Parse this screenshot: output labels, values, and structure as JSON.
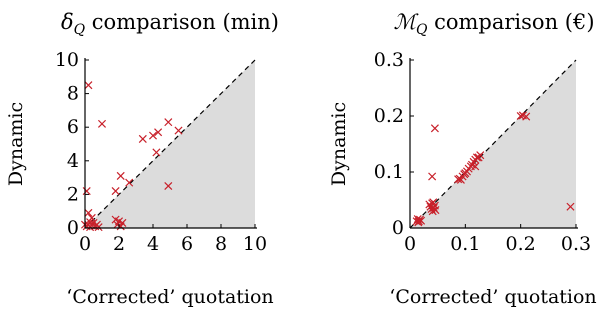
{
  "chart_data": [
    {
      "id": "left",
      "type": "scatter",
      "title_math": "δ",
      "title_sub": "Q",
      "title_text": " comparison (min)",
      "xlabel": "‘Corrected’ quotation",
      "ylabel": "Dynamic",
      "xlim": [
        0,
        10
      ],
      "ylim": [
        0,
        10
      ],
      "xticks": [
        0,
        2,
        4,
        6,
        8,
        10
      ],
      "yticks": [
        0,
        2,
        4,
        6,
        8,
        10
      ],
      "x_tick_labels": [
        "0",
        "2",
        "4",
        "6",
        "8",
        "10"
      ],
      "y_tick_labels": [
        "0",
        "2",
        "4",
        "6",
        "8",
        "10"
      ],
      "diagonal": true,
      "shaded_below_diagonal": true,
      "marker": "x",
      "marker_color": "#c8202a",
      "shade_color": "#dcdcdc",
      "grid": false,
      "points": [
        [
          0.2,
          8.5
        ],
        [
          1.0,
          6.2
        ],
        [
          0.1,
          2.2
        ],
        [
          0.2,
          0.9
        ],
        [
          0.4,
          0.6
        ],
        [
          0.0,
          0.2
        ],
        [
          0.1,
          0.1
        ],
        [
          0.2,
          0.2
        ],
        [
          0.3,
          0.05
        ],
        [
          0.4,
          0.15
        ],
        [
          0.5,
          0.3
        ],
        [
          0.6,
          0.1
        ],
        [
          0.7,
          0.2
        ],
        [
          0.8,
          0.05
        ],
        [
          0.3,
          0.35
        ],
        [
          1.8,
          0.5
        ],
        [
          1.9,
          0.2
        ],
        [
          2.0,
          0.4
        ],
        [
          2.1,
          0.1
        ],
        [
          2.2,
          0.3
        ],
        [
          1.8,
          2.2
        ],
        [
          2.1,
          3.1
        ],
        [
          2.6,
          2.7
        ],
        [
          3.4,
          5.3
        ],
        [
          4.0,
          5.5
        ],
        [
          4.3,
          5.7
        ],
        [
          4.2,
          4.5
        ],
        [
          4.9,
          6.3
        ],
        [
          5.5,
          5.8
        ],
        [
          4.9,
          2.5
        ]
      ]
    },
    {
      "id": "right",
      "type": "scatter",
      "title_math": "ℳ",
      "title_sub": "Q",
      "title_text": " comparison (€)",
      "xlabel": "‘Corrected’ quotation",
      "ylabel": "Dynamic",
      "xlim": [
        0,
        0.3
      ],
      "ylim": [
        0,
        0.3
      ],
      "xticks": [
        0,
        0.1,
        0.2,
        0.3
      ],
      "yticks": [
        0,
        0.1,
        0.2,
        0.3
      ],
      "x_tick_labels": [
        "0",
        "0.1",
        "0.2",
        "0.3"
      ],
      "y_tick_labels": [
        "0",
        "0.1",
        "0.2",
        "0.3"
      ],
      "diagonal": true,
      "shaded_below_diagonal": true,
      "marker": "x",
      "marker_color": "#c8202a",
      "shade_color": "#dcdcdc",
      "grid": false,
      "points": [
        [
          0.012,
          0.012
        ],
        [
          0.014,
          0.016
        ],
        [
          0.016,
          0.012
        ],
        [
          0.018,
          0.015
        ],
        [
          0.02,
          0.013
        ],
        [
          0.015,
          0.01
        ],
        [
          0.035,
          0.042
        ],
        [
          0.037,
          0.038
        ],
        [
          0.039,
          0.034
        ],
        [
          0.041,
          0.03
        ],
        [
          0.043,
          0.036
        ],
        [
          0.045,
          0.04
        ],
        [
          0.04,
          0.044
        ],
        [
          0.042,
          0.046
        ],
        [
          0.046,
          0.032
        ],
        [
          0.04,
          0.092
        ],
        [
          0.045,
          0.178
        ],
        [
          0.087,
          0.087
        ],
        [
          0.09,
          0.088
        ],
        [
          0.092,
          0.086
        ],
        [
          0.095,
          0.092
        ],
        [
          0.098,
          0.096
        ],
        [
          0.1,
          0.098
        ],
        [
          0.103,
          0.101
        ],
        [
          0.106,
          0.106
        ],
        [
          0.11,
          0.11
        ],
        [
          0.112,
          0.113
        ],
        [
          0.115,
          0.118
        ],
        [
          0.118,
          0.122
        ],
        [
          0.121,
          0.126
        ],
        [
          0.124,
          0.126
        ],
        [
          0.127,
          0.13
        ],
        [
          0.118,
          0.11
        ],
        [
          0.2,
          0.2
        ],
        [
          0.204,
          0.201
        ],
        [
          0.21,
          0.199
        ],
        [
          0.29,
          0.038
        ]
      ]
    }
  ]
}
